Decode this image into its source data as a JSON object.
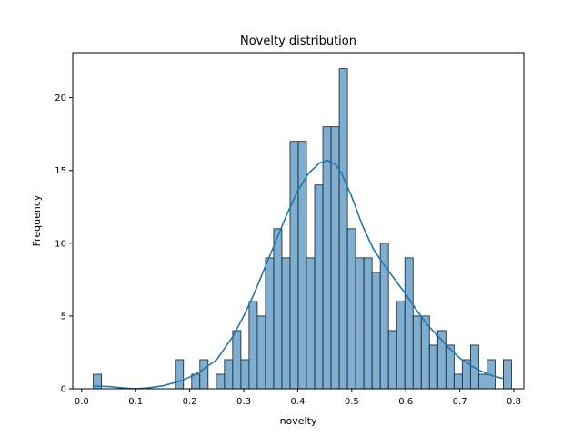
{
  "chart_data": {
    "type": "bar",
    "title": "Novelty distribution",
    "xlabel": "novelty",
    "ylabel": "Frequency",
    "xlim": [
      -0.0165,
      0.8185
    ],
    "ylim": [
      0,
      23.1
    ],
    "x_ticks": [
      0.0,
      0.1,
      0.2,
      0.3,
      0.4,
      0.5,
      0.6,
      0.7,
      0.8
    ],
    "x_tick_labels": [
      "0.0",
      "0.1",
      "0.2",
      "0.3",
      "0.4",
      "0.5",
      "0.6",
      "0.7",
      "0.8"
    ],
    "y_ticks": [
      0,
      5,
      10,
      15,
      20
    ],
    "y_tick_labels": [
      "0",
      "5",
      "10",
      "15",
      "20"
    ],
    "grid": false,
    "legend": "none",
    "bin_start": 0.0215,
    "bin_width": 0.01518,
    "values": [
      1,
      0,
      0,
      0,
      0,
      0,
      0,
      0,
      0,
      0,
      2,
      0,
      1,
      2,
      0,
      1,
      2,
      4,
      2,
      6,
      5,
      9,
      11,
      9,
      17,
      17,
      9,
      14,
      18,
      18,
      22,
      11,
      9,
      9,
      8,
      10,
      4,
      6,
      9,
      5,
      5,
      3,
      4,
      3,
      1,
      2,
      3,
      1,
      2,
      0,
      2
    ],
    "kde": {
      "x": [
        0.02,
        0.05,
        0.08,
        0.1,
        0.12,
        0.15,
        0.18,
        0.2,
        0.22,
        0.25,
        0.28,
        0.3,
        0.32,
        0.34,
        0.36,
        0.38,
        0.4,
        0.42,
        0.44,
        0.455,
        0.47,
        0.48,
        0.5,
        0.52,
        0.54,
        0.56,
        0.58,
        0.6,
        0.62,
        0.64,
        0.66,
        0.68,
        0.7,
        0.72,
        0.74,
        0.76,
        0.78
      ],
      "y": [
        0.2,
        0.15,
        0.05,
        0.0,
        0.05,
        0.2,
        0.5,
        0.8,
        1.2,
        2.0,
        3.6,
        5.0,
        6.6,
        8.4,
        10.2,
        12.0,
        13.6,
        14.8,
        15.5,
        15.7,
        15.4,
        14.9,
        13.2,
        11.2,
        9.6,
        8.5,
        7.5,
        6.5,
        5.4,
        4.4,
        3.6,
        2.8,
        2.1,
        1.6,
        1.2,
        0.9,
        0.7
      ]
    },
    "colors": {
      "bar_fill": "#7eaed1",
      "bar_edge": "#1a1a1a",
      "kde_line": "#1f77b4"
    }
  }
}
